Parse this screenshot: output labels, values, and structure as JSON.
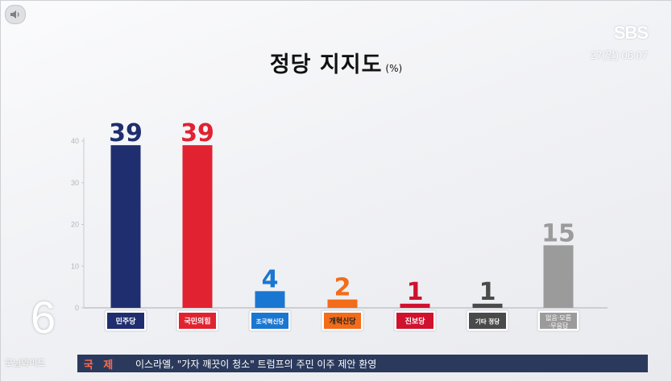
{
  "header": {
    "logo": "SBS",
    "clock": "27(일) 06:07"
  },
  "program": {
    "number": "6",
    "name": "모닝와이드"
  },
  "ticker": {
    "category": "국 제",
    "headline": "이스라엘, \"가자 깨끗이 청소\" 트럼프의 주민 이주 제안 환영"
  },
  "colors": {
    "ticker_bg": "#2b3a5c",
    "ticker_category": "#ff6a4d"
  },
  "chart_data": {
    "type": "bar",
    "title": "정당 지지도",
    "unit": "(%)",
    "ylim": [
      0,
      40
    ],
    "yticks": [
      0,
      10,
      20,
      30,
      40
    ],
    "grid": false,
    "categories": [
      "민주당",
      "국민의힘",
      "조국혁신당",
      "개혁신당",
      "진보당",
      "기타 정당",
      "없음·모름·무응답"
    ],
    "values": [
      39,
      39,
      4,
      2,
      1,
      1,
      15
    ],
    "bar_colors": [
      "#1f2e6e",
      "#e12230",
      "#1a77d1",
      "#f26c1a",
      "#d0122e",
      "#4a4a4a",
      "#9b9b9b"
    ],
    "badge_colors": [
      "#1f2e6e",
      "#e12230",
      "#1a77d1",
      "#f26c1a",
      "#d0122e",
      "#4a4a4a",
      "#9b9b9b"
    ],
    "badge_text_colors": [
      "#ffffff",
      "#ffffff",
      "#ffffff",
      "#222222",
      "#ffffff",
      "#ffffff",
      "#ffffff"
    ]
  }
}
